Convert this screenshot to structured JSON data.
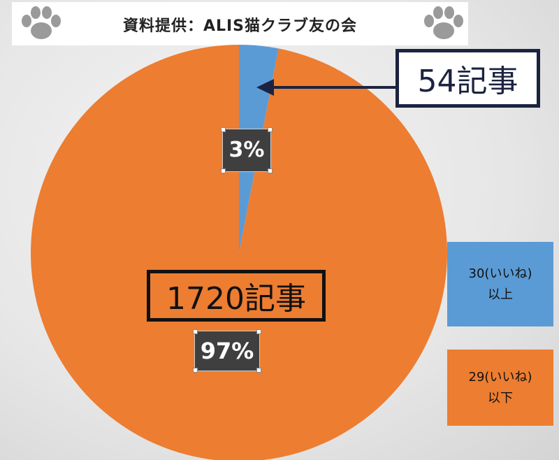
{
  "header": {
    "title": "資料提供：ALIS猫クラブ友の会"
  },
  "colors": {
    "blue": "#5b9bd5",
    "orange": "#ed7d31",
    "navy": "#1c2340"
  },
  "icons": {
    "left": "paw-icon",
    "right": "paw-icon"
  },
  "chart_data": {
    "type": "pie",
    "title": "",
    "slices": [
      {
        "label_line1": "30(いいね)",
        "label_line2": "以上",
        "value": 54,
        "percent_label": "3%",
        "count_label": "54記事",
        "color": "#5b9bd5"
      },
      {
        "label_line1": "29(いいね)",
        "label_line2": "以下",
        "value": 1720,
        "percent_label": "97%",
        "count_label": "1720記事",
        "color": "#ed7d31"
      }
    ],
    "legend": {
      "position": "right"
    }
  }
}
